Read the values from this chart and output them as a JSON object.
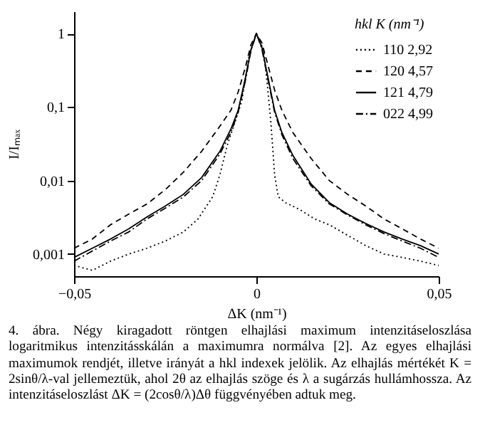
{
  "chart_data": {
    "type": "line",
    "xlabel": "ΔK (nm⁻¹)",
    "ylabel": "I/Iₘₐₓ",
    "legend_title": "hkl K (nm⁻¹)",
    "log": "y",
    "grid": false,
    "legend": "top right",
    "marker": "none",
    "xlim": [
      -0.05,
      0.05
    ],
    "xticks": [
      {
        "value": -0.05,
        "label": "−0,05"
      },
      0,
      {
        "value": 0.05,
        "label": "0,05"
      }
    ],
    "ylim": [
      0.0005,
      2
    ],
    "yticks": [
      {
        "value": 0.001,
        "label": "0,001"
      },
      {
        "value": 0.01,
        "label": "0,01"
      },
      {
        "value": 0.1,
        "label": "0,1"
      },
      1
    ],
    "series": [
      {
        "name": "110 2,92",
        "color": "#000000",
        "line_style": "dotted",
        "x": [
          -0.05,
          -0.045,
          -0.04,
          -0.035,
          -0.03,
          -0.025,
          -0.02,
          -0.016,
          -0.012,
          -0.01,
          -0.008,
          -0.006,
          -0.004,
          -0.002,
          0,
          0.002,
          0.003,
          0.004,
          0.005,
          0.006,
          0.008,
          0.012,
          0.016,
          0.02,
          0.025,
          0.03,
          0.035,
          0.04,
          0.045,
          0.05
        ],
        "values": [
          0.0007,
          0.0006,
          0.0008,
          0.001,
          0.0012,
          0.0015,
          0.002,
          0.003,
          0.006,
          0.012,
          0.03,
          0.06,
          0.12,
          0.5,
          1,
          0.6,
          0.2,
          0.06,
          0.012,
          0.006,
          0.005,
          0.004,
          0.003,
          0.0025,
          0.0018,
          0.0013,
          0.001,
          0.0009,
          0.0008,
          0.0007
        ]
      },
      {
        "name": "120 4,57",
        "color": "#000000",
        "line_style": "dashed",
        "x": [
          -0.05,
          -0.045,
          -0.04,
          -0.035,
          -0.03,
          -0.025,
          -0.02,
          -0.015,
          -0.01,
          -0.007,
          -0.005,
          -0.003,
          -0.0015,
          0,
          0.0015,
          0.003,
          0.005,
          0.007,
          0.01,
          0.015,
          0.02,
          0.025,
          0.03,
          0.035,
          0.04,
          0.045,
          0.05
        ],
        "values": [
          0.0012,
          0.0016,
          0.0025,
          0.0035,
          0.0048,
          0.0075,
          0.013,
          0.025,
          0.055,
          0.09,
          0.16,
          0.35,
          0.7,
          1,
          0.75,
          0.4,
          0.17,
          0.09,
          0.045,
          0.02,
          0.01,
          0.0065,
          0.0045,
          0.003,
          0.0022,
          0.0016,
          0.0012
        ]
      },
      {
        "name": "121 4,79",
        "color": "#000000",
        "line_style": "solid",
        "x": [
          -0.05,
          -0.045,
          -0.04,
          -0.035,
          -0.03,
          -0.025,
          -0.02,
          -0.015,
          -0.01,
          -0.007,
          -0.005,
          -0.003,
          -0.0015,
          0,
          0.0015,
          0.003,
          0.005,
          0.007,
          0.01,
          0.015,
          0.02,
          0.025,
          0.03,
          0.035,
          0.04,
          0.045,
          0.05
        ],
        "values": [
          0.0009,
          0.0012,
          0.0016,
          0.0022,
          0.0032,
          0.0045,
          0.0065,
          0.011,
          0.025,
          0.05,
          0.09,
          0.25,
          0.6,
          1,
          0.65,
          0.28,
          0.09,
          0.045,
          0.022,
          0.009,
          0.005,
          0.0035,
          0.0026,
          0.002,
          0.0016,
          0.0013,
          0.001
        ]
      },
      {
        "name": "022 4,99",
        "color": "#000000",
        "line_style": "dashdot",
        "x": [
          -0.05,
          -0.045,
          -0.04,
          -0.035,
          -0.03,
          -0.025,
          -0.02,
          -0.015,
          -0.01,
          -0.007,
          -0.005,
          -0.003,
          -0.0015,
          0,
          0.0015,
          0.003,
          0.005,
          0.007,
          0.01,
          0.015,
          0.02,
          0.025,
          0.03,
          0.035,
          0.04,
          0.045,
          0.05
        ],
        "values": [
          0.0008,
          0.0011,
          0.0015,
          0.002,
          0.003,
          0.0042,
          0.006,
          0.01,
          0.023,
          0.045,
          0.085,
          0.23,
          0.58,
          1,
          0.62,
          0.26,
          0.085,
          0.042,
          0.02,
          0.0085,
          0.0048,
          0.0034,
          0.0025,
          0.0019,
          0.0015,
          0.0012,
          0.0009
        ]
      }
    ],
    "annotations": [
      "4. ábra. Négy kiragadott röntgen elhajlási maximum intenzitáseloszlása logaritmikus intenzitásskálán a maximumra normálva [2]. Az egyes elhajlási maximumok rendjét, illetve irányát a hkl indexek jelölik. Az elhajlás mértékét K = 2sinθ/λ-val jellemeztük, ahol 2θ az elhajlás szöge és λ a sugárzás hullámhossza. Az intenzitáseloszlást ΔK = (2cosθ/λ)Δθ függvényében adtuk meg."
    ]
  }
}
